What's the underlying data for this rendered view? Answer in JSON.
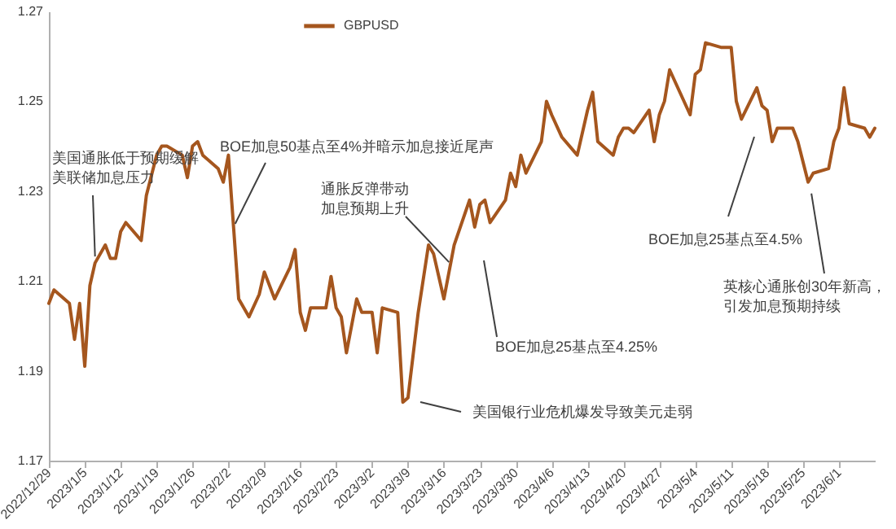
{
  "chart_data": {
    "type": "line",
    "x": [
      "2022-12-29",
      "2022-12-30",
      "2023-01-02",
      "2023-01-03",
      "2023-01-04",
      "2023-01-05",
      "2023-01-06",
      "2023-01-07",
      "2023-01-09",
      "2023-01-10",
      "2023-01-11",
      "2023-01-12",
      "2023-01-13",
      "2023-01-16",
      "2023-01-17",
      "2023-01-19",
      "2023-01-20",
      "2023-01-21",
      "2023-01-24",
      "2023-01-25",
      "2023-01-26",
      "2023-01-27",
      "2023-01-28",
      "2023-01-31",
      "2023-02-01",
      "2023-02-02",
      "2023-02-03",
      "2023-02-04",
      "2023-02-06",
      "2023-02-08",
      "2023-02-09",
      "2023-02-11",
      "2023-02-14",
      "2023-02-15",
      "2023-02-16",
      "2023-02-17",
      "2023-02-18",
      "2023-02-21",
      "2023-02-22",
      "2023-02-23",
      "2023-02-24",
      "2023-02-25",
      "2023-02-27",
      "2023-02-28",
      "2023-03-02",
      "2023-03-03",
      "2023-03-04",
      "2023-03-07",
      "2023-03-08",
      "2023-03-09",
      "2023-03-11",
      "2023-03-13",
      "2023-03-14",
      "2023-03-16",
      "2023-03-17",
      "2023-03-18",
      "2023-03-21",
      "2023-03-22",
      "2023-03-23",
      "2023-03-24",
      "2023-03-25",
      "2023-03-28",
      "2023-03-29",
      "2023-03-30",
      "2023-03-31",
      "2023-04-01",
      "2023-04-04",
      "2023-04-05",
      "2023-04-06",
      "2023-04-08",
      "2023-04-11",
      "2023-04-13",
      "2023-04-14",
      "2023-04-15",
      "2023-04-18",
      "2023-04-19",
      "2023-04-20",
      "2023-04-21",
      "2023-04-22",
      "2023-04-25",
      "2023-04-26",
      "2023-04-27",
      "2023-04-28",
      "2023-04-29",
      "2023-05-03",
      "2023-05-04",
      "2023-05-05",
      "2023-05-06",
      "2023-05-09",
      "2023-05-11",
      "2023-05-12",
      "2023-05-13",
      "2023-05-16",
      "2023-05-17",
      "2023-05-18",
      "2023-05-19",
      "2023-05-20",
      "2023-05-23",
      "2023-05-24",
      "2023-05-26",
      "2023-05-27",
      "2023-05-30",
      "2023-05-31",
      "2023-06-01",
      "2023-06-02",
      "2023-06-03",
      "2023-06-06",
      "2023-06-07",
      "2023-06-08"
    ],
    "series": [
      {
        "name": "GBPUSD",
        "color": "#a5561e",
        "values": [
          1.205,
          1.208,
          1.205,
          1.197,
          1.205,
          1.191,
          1.209,
          1.214,
          1.218,
          1.215,
          1.215,
          1.221,
          1.223,
          1.219,
          1.229,
          1.238,
          1.24,
          1.24,
          1.238,
          1.233,
          1.24,
          1.241,
          1.238,
          1.235,
          1.232,
          1.238,
          1.222,
          1.206,
          1.202,
          1.207,
          1.212,
          1.206,
          1.213,
          1.217,
          1.203,
          1.199,
          1.204,
          1.204,
          1.211,
          1.204,
          1.202,
          1.194,
          1.206,
          1.203,
          1.203,
          1.194,
          1.204,
          1.203,
          1.183,
          1.184,
          1.203,
          1.218,
          1.216,
          1.206,
          1.212,
          1.218,
          1.228,
          1.222,
          1.227,
          1.228,
          1.223,
          1.228,
          1.234,
          1.231,
          1.238,
          1.234,
          1.241,
          1.25,
          1.247,
          1.242,
          1.238,
          1.248,
          1.252,
          1.241,
          1.238,
          1.242,
          1.244,
          1.244,
          1.243,
          1.248,
          1.241,
          1.247,
          1.25,
          1.257,
          1.247,
          1.256,
          1.257,
          1.263,
          1.262,
          1.262,
          1.25,
          1.246,
          1.253,
          1.249,
          1.248,
          1.241,
          1.244,
          1.244,
          1.241,
          1.232,
          1.234,
          1.235,
          1.241,
          1.244,
          1.253,
          1.245,
          1.244,
          1.242,
          1.244
        ]
      }
    ],
    "xlim": [
      "2022-12-29",
      "2023-06-08"
    ],
    "xticks": [
      {
        "value": "2022-12-29",
        "label": "2022/12/29"
      },
      {
        "value": "2023-01-05",
        "label": "2023/1/5"
      },
      {
        "value": "2023-01-12",
        "label": "2023/1/12"
      },
      {
        "value": "2023-01-19",
        "label": "2023/1/19"
      },
      {
        "value": "2023-01-26",
        "label": "2023/1/26"
      },
      {
        "value": "2023-02-02",
        "label": "2023/2/2"
      },
      {
        "value": "2023-02-09",
        "label": "2023/2/9"
      },
      {
        "value": "2023-02-16",
        "label": "2023/2/16"
      },
      {
        "value": "2023-02-23",
        "label": "2023/2/23"
      },
      {
        "value": "2023-03-02",
        "label": "2023/3/2"
      },
      {
        "value": "2023-03-09",
        "label": "2023/3/9"
      },
      {
        "value": "2023-03-16",
        "label": "2023/3/16"
      },
      {
        "value": "2023-03-23",
        "label": "2023/3/23"
      },
      {
        "value": "2023-03-30",
        "label": "2023/3/30"
      },
      {
        "value": "2023-04-06",
        "label": "2023/4/6"
      },
      {
        "value": "2023-04-13",
        "label": "2023/4/13"
      },
      {
        "value": "2023-04-20",
        "label": "2023/4/20"
      },
      {
        "value": "2023-04-27",
        "label": "2023/4/27"
      },
      {
        "value": "2023-05-04",
        "label": "2023/5/4"
      },
      {
        "value": "2023-05-11",
        "label": "2023/5/11"
      },
      {
        "value": "2023-05-18",
        "label": "2023/5/18"
      },
      {
        "value": "2023-05-25",
        "label": "2023/5/25"
      },
      {
        "value": "2023-06-01",
        "label": "2023/6/1"
      }
    ],
    "ylim": [
      1.17,
      1.27
    ],
    "yticks": [
      1.17,
      1.19,
      1.21,
      1.23,
      1.25,
      1.27
    ],
    "legend": "top",
    "annotations": [
      {
        "text": "美国通胀低于预期缓解美联储加息压力",
        "x": "2023-01-07",
        "y": 1.214
      },
      {
        "text": "BOE加息50基点至4%并暗示加息接近尾声",
        "x": "2023-02-03",
        "y": 1.222
      },
      {
        "text": "通胀反弹带动加息预期上升",
        "x": "2023-03-17",
        "y": 1.212
      },
      "BOE加息25基点至4.25%",
      "美国银行业危机爆发导致美元走弱",
      "BOE加息25基点至4.5%",
      {
        "text": "英核心通胀创30年新高，引发加息预期持续",
        "x": "2023-05-26",
        "y": 1.232
      }
    ]
  }
}
